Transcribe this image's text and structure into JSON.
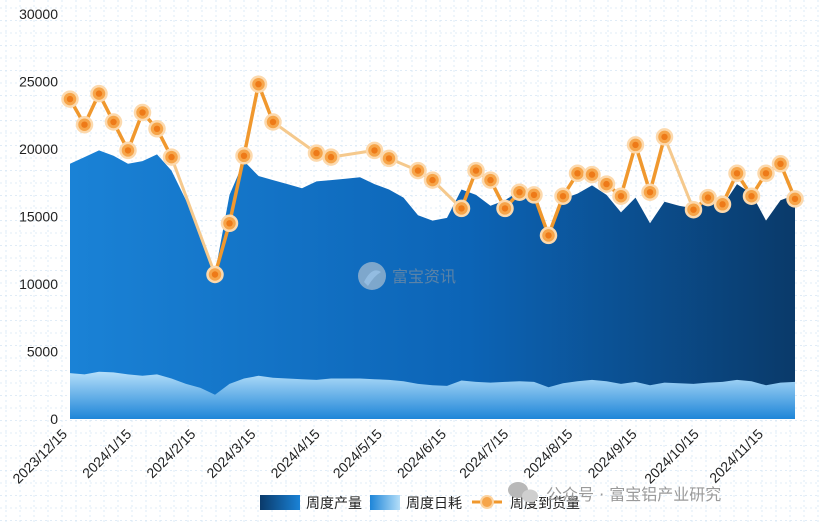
{
  "chart_data": {
    "type": "area",
    "x_ticks": [
      "2023/12/15",
      "2024/1/15",
      "2024/2/15",
      "2024/3/15",
      "2024/4/15",
      "2024/5/15",
      "2024/6/15",
      "2024/7/15",
      "2024/8/15",
      "2024/9/15",
      "2024/10/15",
      "2024/11/15"
    ],
    "y_ticks": [
      "0",
      "5000",
      "10000",
      "15000",
      "20000",
      "25000",
      "30000"
    ],
    "ylim": [
      0,
      30000
    ],
    "grid": true,
    "legend_position": "bottom",
    "x": [
      "2023-12-15",
      "2023-12-22",
      "2023-12-29",
      "2024-01-05",
      "2024-01-12",
      "2024-01-19",
      "2024-01-26",
      "2024-02-02",
      "2024-02-09",
      "2024-02-16",
      "2024-02-23",
      "2024-03-01",
      "2024-03-08",
      "2024-03-15",
      "2024-03-22",
      "2024-03-29",
      "2024-04-05",
      "2024-04-12",
      "2024-04-19",
      "2024-04-26",
      "2024-05-03",
      "2024-05-10",
      "2024-05-17",
      "2024-05-24",
      "2024-05-31",
      "2024-06-07",
      "2024-06-14",
      "2024-06-21",
      "2024-06-28",
      "2024-07-05",
      "2024-07-12",
      "2024-07-19",
      "2024-07-26",
      "2024-08-02",
      "2024-08-09",
      "2024-08-16",
      "2024-08-23",
      "2024-08-30",
      "2024-09-06",
      "2024-09-13",
      "2024-09-20",
      "2024-09-27",
      "2024-10-04",
      "2024-10-11",
      "2024-10-18",
      "2024-10-25",
      "2024-11-01",
      "2024-11-08",
      "2024-11-15",
      "2024-11-22",
      "2024-11-29"
    ],
    "series": [
      {
        "name": "周度产量",
        "type": "area",
        "values": [
          18900,
          19400,
          19900,
          19500,
          18900,
          19100,
          19600,
          18400,
          16200,
          13800,
          10800,
          16600,
          19100,
          18000,
          17700,
          17400,
          17100,
          17600,
          17700,
          17800,
          17900,
          17400,
          17000,
          16400,
          15100,
          14700,
          14900,
          17000,
          16600,
          15800,
          16200,
          16900,
          16600,
          13700,
          16300,
          16700,
          17300,
          16600,
          15300,
          16400,
          14500,
          16100,
          15800,
          15600,
          16100,
          15800,
          17400,
          16700,
          14700,
          16200,
          16600
        ]
      },
      {
        "name": "周度日耗",
        "type": "area",
        "values": [
          3400,
          3300,
          3500,
          3450,
          3300,
          3200,
          3300,
          3000,
          2600,
          2300,
          1800,
          2600,
          3000,
          3200,
          3050,
          3000,
          2950,
          2900,
          3000,
          3000,
          3000,
          2950,
          2900,
          2800,
          2600,
          2500,
          2450,
          2850,
          2750,
          2700,
          2750,
          2800,
          2750,
          2350,
          2650,
          2800,
          2900,
          2800,
          2600,
          2750,
          2500,
          2700,
          2650,
          2600,
          2700,
          2750,
          2900,
          2800,
          2500,
          2700,
          2750
        ]
      },
      {
        "name": "周度到货量",
        "type": "line",
        "values": [
          23700,
          21800,
          24100,
          22000,
          19900,
          22700,
          21500,
          19400,
          null,
          null,
          10700,
          14500,
          19500,
          24800,
          22000,
          null,
          null,
          19700,
          19400,
          null,
          null,
          19900,
          19300,
          null,
          18400,
          17700,
          null,
          15600,
          18400,
          17700,
          15600,
          16800,
          16600,
          13600,
          16500,
          18200,
          18100,
          17400,
          16500,
          20300,
          16800,
          20900,
          null,
          15500,
          16400,
          15900,
          18200,
          16500,
          18200,
          18900,
          16300
        ]
      }
    ]
  },
  "legend": {
    "production_label": "周度产量",
    "consumption_label": "周度日耗",
    "arrival_label": "周度到货量"
  },
  "watermark": {
    "center_text": "富宝资讯",
    "corner_text": "公众号 · 富宝铝产业研究"
  },
  "colors": {
    "production_light": "#1a82d6",
    "production_dark": "#0a3a6a",
    "consumption_top": "#a8d8f8",
    "consumption_bottom": "#1d85d8",
    "arrival_line": "#f0982e",
    "arrival_marker": "#f6a54a",
    "arrival_marker_center": "#f07d1e",
    "grid": "#cfe2f3"
  }
}
